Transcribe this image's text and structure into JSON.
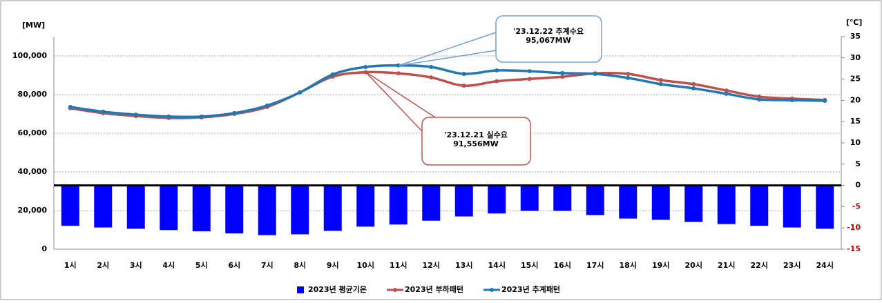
{
  "chart_data": {
    "type": "combo",
    "y_label": "[MW]",
    "y2_label": "[℃]",
    "categories": [
      "1시",
      "2시",
      "3시",
      "4시",
      "5시",
      "6시",
      "7시",
      "8시",
      "9시",
      "10시",
      "11시",
      "12시",
      "13시",
      "14시",
      "15시",
      "16시",
      "17시",
      "18시",
      "19시",
      "20시",
      "21시",
      "22시",
      "23시",
      "24시"
    ],
    "series": [
      {
        "name": "2023년 평균기온",
        "type": "bar",
        "axis": "y2",
        "color": "#0000ff",
        "values": [
          -9.5,
          -9.9,
          -10.2,
          -10.5,
          -10.8,
          -11.3,
          -11.7,
          -11.5,
          -10.7,
          -9.7,
          -9.2,
          -8.3,
          -7.3,
          -6.6,
          -6.0,
          -6.0,
          -7.0,
          -7.8,
          -8.1,
          -8.6,
          -9.1,
          -9.5,
          -9.9,
          -10.2
        ]
      },
      {
        "name": "2023년 부하패턴",
        "type": "line",
        "color": "#c0504d",
        "values": [
          72900,
          70400,
          68900,
          67900,
          68200,
          70000,
          73600,
          81100,
          89300,
          91556,
          91000,
          88900,
          84600,
          86900,
          88100,
          89200,
          91000,
          90700,
          87500,
          85400,
          82100,
          78900,
          77900,
          77200
        ]
      },
      {
        "name": "2023년 추계패턴",
        "type": "line",
        "color": "#1f77b4",
        "values": [
          73600,
          71100,
          69600,
          68600,
          68600,
          70400,
          74300,
          81100,
          90400,
          94300,
          95067,
          94300,
          90700,
          92500,
          92100,
          91100,
          90700,
          88600,
          85400,
          83200,
          80400,
          77500,
          77100,
          76800
        ]
      }
    ],
    "ylim": [
      0,
      110000
    ],
    "yticks": [
      0,
      {
        "value": 20000,
        "label": "20,000"
      },
      {
        "value": 40000,
        "label": "40,000"
      },
      {
        "value": 60000,
        "label": "60,000"
      },
      {
        "value": 80000,
        "label": "80,000"
      },
      {
        "value": 100000,
        "label": "100,000"
      }
    ],
    "y2lim": [
      -15,
      35
    ],
    "y2ticks": [
      -15,
      -10,
      -5,
      0,
      5,
      10,
      15,
      20,
      25,
      30,
      35
    ],
    "grid": true,
    "legend": "bottom",
    "annotations": [
      {
        "lines": [
          "'23.12.22 추계수요",
          "95,067MW"
        ],
        "color": "#1f77b4"
      },
      {
        "lines": [
          "'23.12.21 실수요",
          "91,556MW"
        ],
        "color": "#c0504d"
      }
    ]
  }
}
